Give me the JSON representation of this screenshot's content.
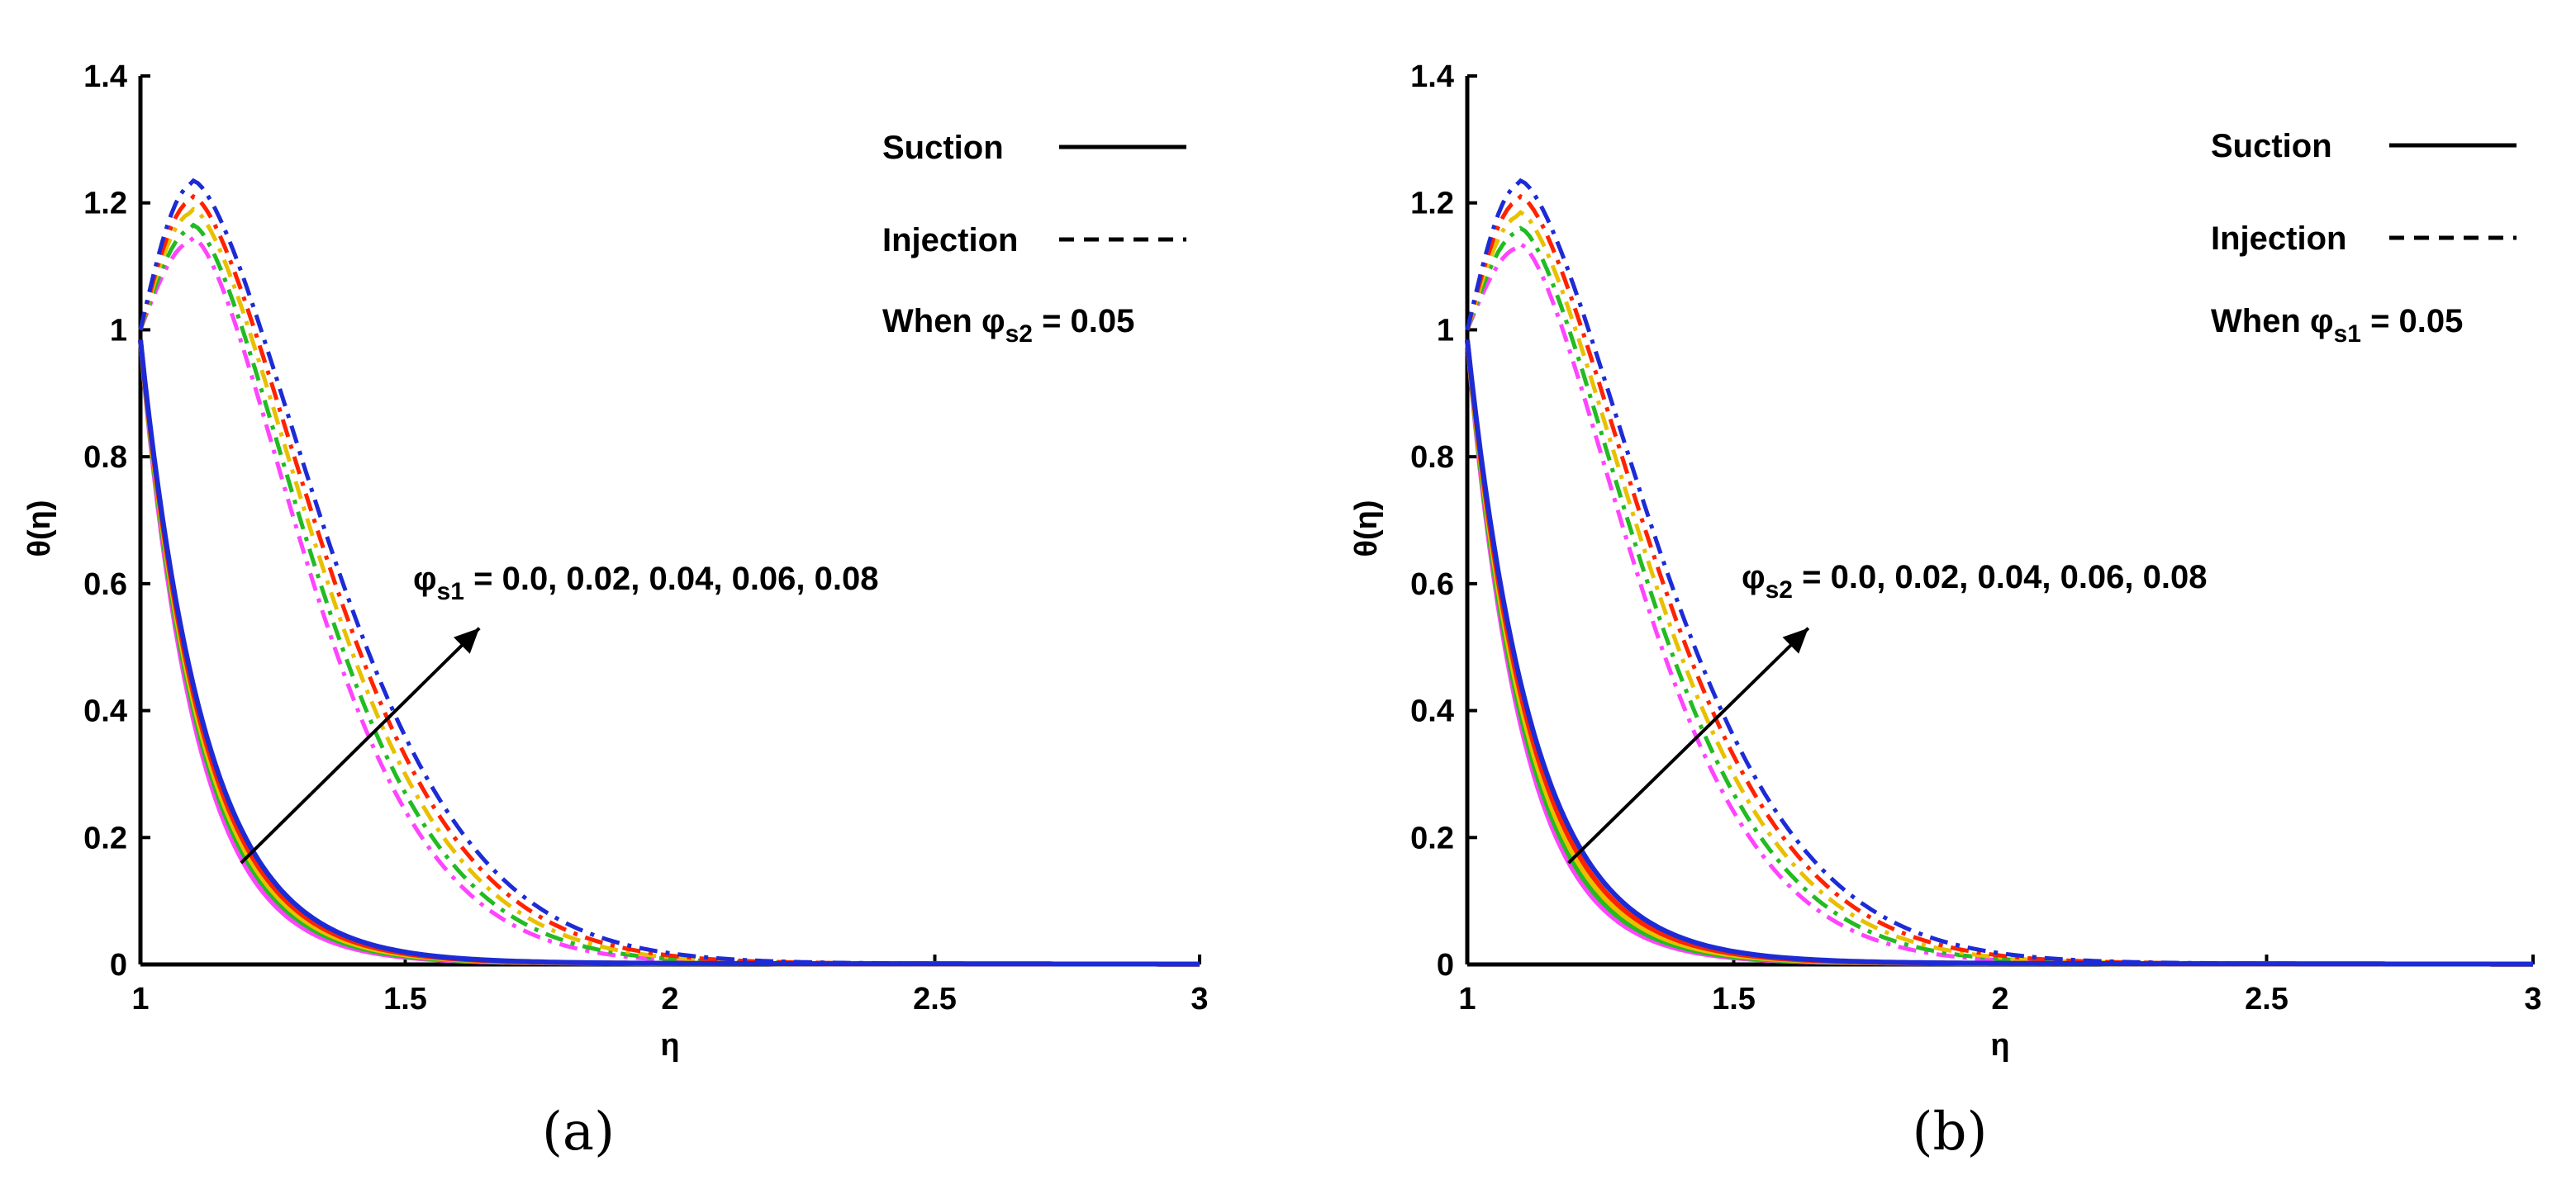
{
  "chart_data": [
    {
      "type": "line",
      "panel_caption": "(a)",
      "xlabel": "η",
      "ylabel": "θ(η)",
      "xlim": [
        1,
        3
      ],
      "ylim": [
        0,
        1.4
      ],
      "x_ticks": [
        "1",
        "1.5",
        "2",
        "2.5",
        "3"
      ],
      "y_ticks": [
        "0",
        "0.2",
        "0.4",
        "0.6",
        "0.8",
        "1",
        "1.2",
        "1.4"
      ],
      "x_tick_values": [
        1,
        1.5,
        2,
        2.5,
        3
      ],
      "y_tick_values": [
        0,
        0.2,
        0.4,
        0.6,
        0.8,
        1,
        1.2,
        1.4
      ],
      "legend": [
        {
          "label": "Suction",
          "style": "solid"
        },
        {
          "label": "Injection",
          "style": "dashed"
        }
      ],
      "condition": {
        "prefix": "When φ",
        "sub": "s2",
        "suffix": " = 0.05"
      },
      "annotation": {
        "prefix": "φ",
        "sub": "s1",
        "suffix": " = 0.0, 0.02, 0.04, 0.06, 0.08"
      },
      "arrow": {
        "from": [
          1.19,
          0.16
        ],
        "to": [
          1.64,
          0.53
        ]
      },
      "series": [
        {
          "name": "φs1 = 0.0",
          "color": "#ff44ff",
          "suction_decay": 9.4,
          "injection_peak": 1.14
        },
        {
          "name": "φs1 = 0.02",
          "color": "#22bb22",
          "suction_decay": 9.0,
          "injection_peak": 1.16
        },
        {
          "name": "φs1 = 0.04",
          "color": "#e8c000",
          "suction_decay": 8.7,
          "injection_peak": 1.185
        },
        {
          "name": "φs1 = 0.06",
          "color": "#ff2200",
          "suction_decay": 8.4,
          "injection_peak": 1.205
        },
        {
          "name": "φs1 = 0.08",
          "color": "#1d2bd6",
          "suction_decay": 8.1,
          "injection_peak": 1.23
        }
      ]
    },
    {
      "type": "line",
      "panel_caption": "(b)",
      "xlabel": "η",
      "ylabel": "θ(η)",
      "xlim": [
        1,
        3
      ],
      "ylim": [
        0,
        1.4
      ],
      "x_ticks": [
        "1",
        "1.5",
        "2",
        "2.5",
        "3"
      ],
      "y_ticks": [
        "0",
        "0.2",
        "0.4",
        "0.6",
        "0.8",
        "1",
        "1.2",
        "1.4"
      ],
      "x_tick_values": [
        1,
        1.5,
        2,
        2.5,
        3
      ],
      "y_tick_values": [
        0,
        0.2,
        0.4,
        0.6,
        0.8,
        1,
        1.2,
        1.4
      ],
      "legend": [
        {
          "label": "Suction",
          "style": "solid"
        },
        {
          "label": "Injection",
          "style": "dashed"
        }
      ],
      "condition": {
        "prefix": "When φ",
        "sub": "s1",
        "suffix": " = 0.05"
      },
      "annotation": {
        "prefix": "φ",
        "sub": "s2",
        "suffix": " = 0.0, 0.02, 0.04, 0.06, 0.08"
      },
      "arrow": {
        "from": [
          1.19,
          0.16
        ],
        "to": [
          1.64,
          0.53
        ]
      },
      "series": [
        {
          "name": "φs2 = 0.0",
          "color": "#ff44ff",
          "suction_decay": 9.6,
          "injection_peak": 1.13
        },
        {
          "name": "φs2 = 0.02",
          "color": "#22bb22",
          "suction_decay": 9.2,
          "injection_peak": 1.155
        },
        {
          "name": "φs2 = 0.04",
          "color": "#e8c000",
          "suction_decay": 8.8,
          "injection_peak": 1.18
        },
        {
          "name": "φs2 = 0.06",
          "color": "#ff2200",
          "suction_decay": 8.4,
          "injection_peak": 1.205
        },
        {
          "name": "φs2 = 0.08",
          "color": "#1d2bd6",
          "suction_decay": 8.0,
          "injection_peak": 1.23
        }
      ]
    }
  ]
}
